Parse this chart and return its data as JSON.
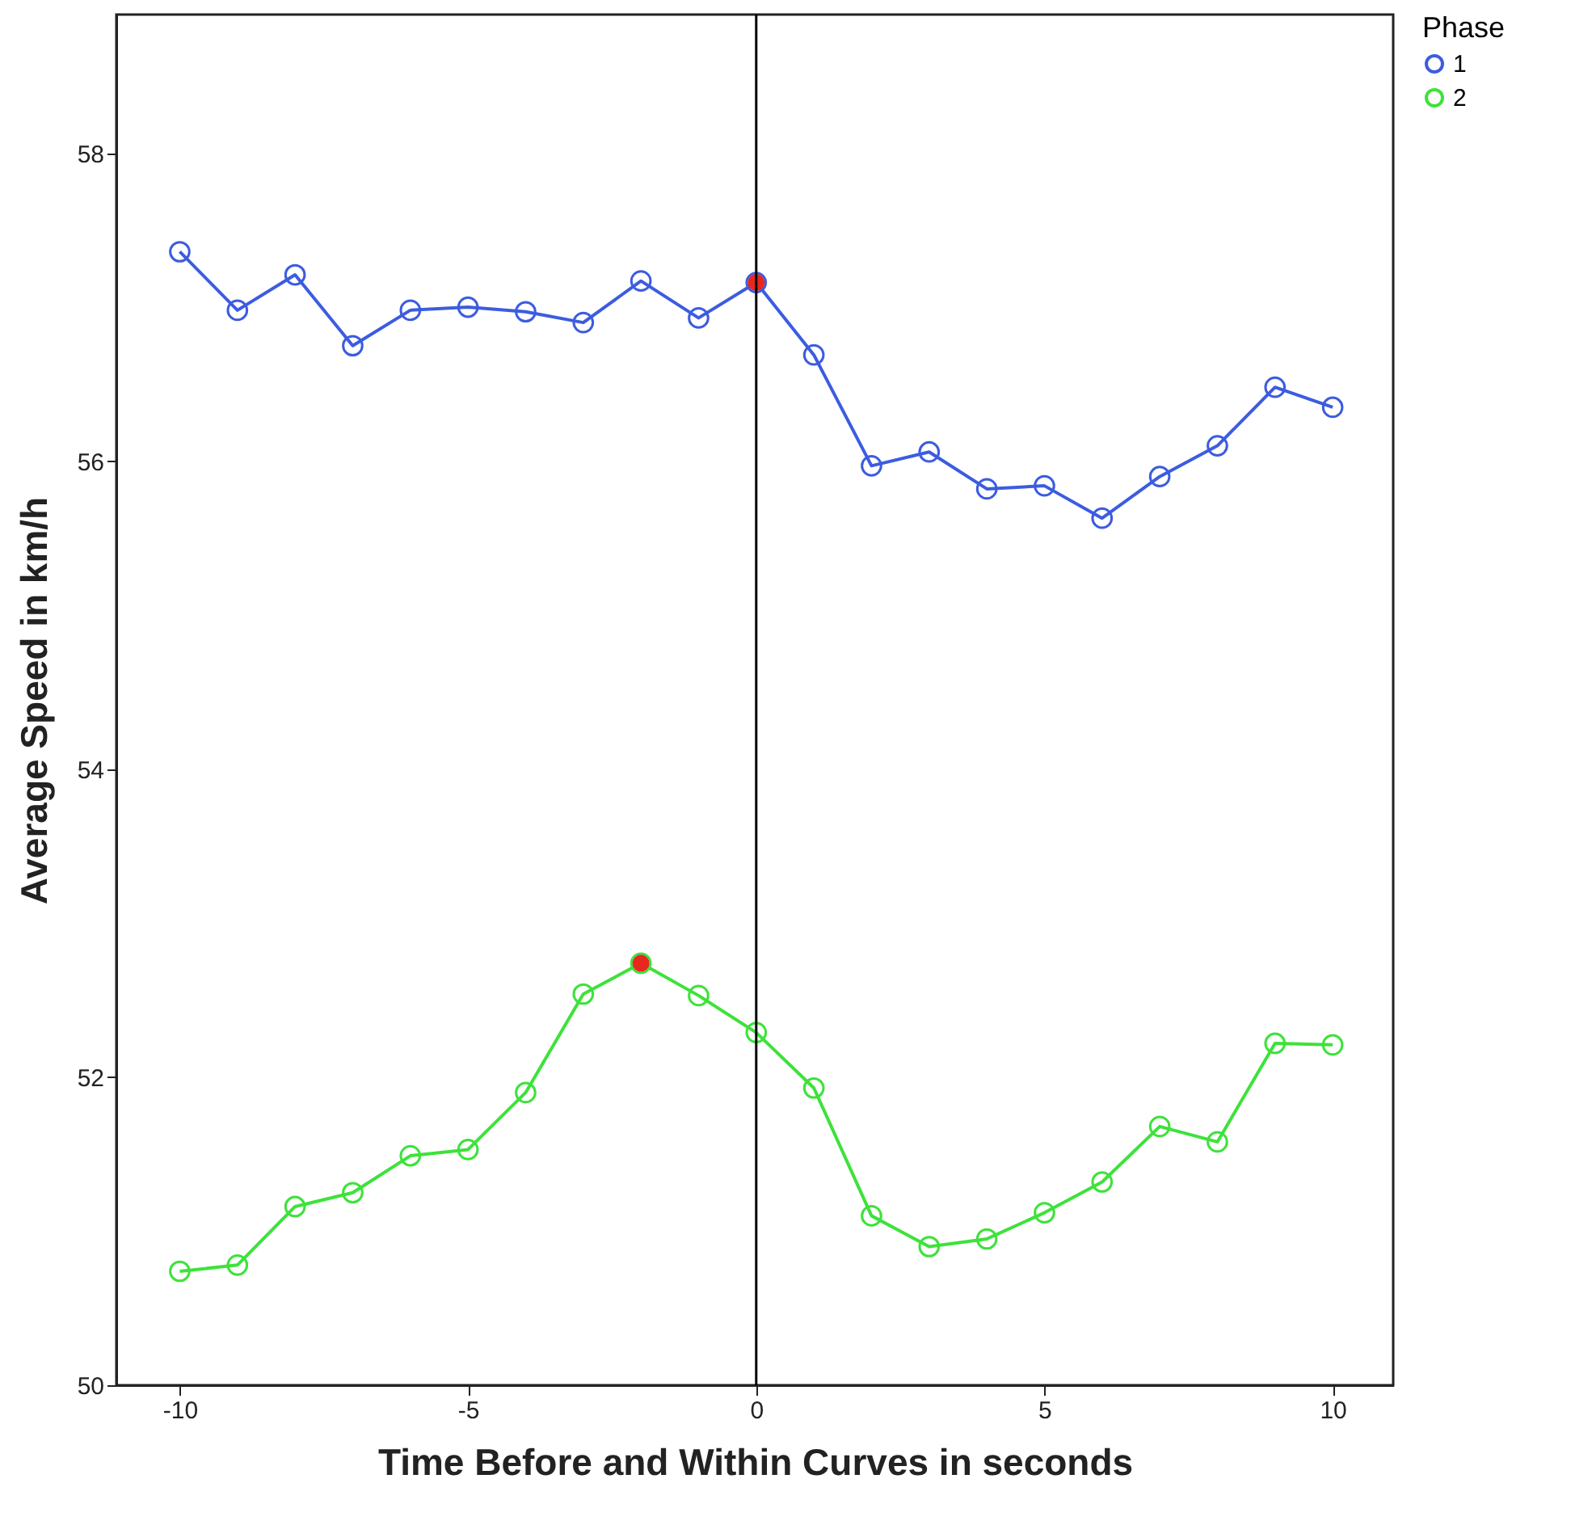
{
  "chart_data": {
    "type": "line",
    "xlabel": "Time Before and Within Curves in seconds",
    "ylabel": "Average Speed in km/h",
    "legend_title": "Phase",
    "x": [
      -10,
      -9,
      -8,
      -7,
      -6,
      -5,
      -4,
      -3,
      -2,
      -1,
      0,
      1,
      2,
      3,
      4,
      5,
      6,
      7,
      8,
      9,
      10
    ],
    "series": [
      {
        "name": "1",
        "color": "#3c5ce0",
        "values": [
          57.36,
          56.98,
          57.21,
          56.75,
          56.98,
          57.0,
          56.97,
          56.9,
          57.17,
          56.93,
          57.16,
          56.69,
          55.97,
          56.06,
          55.82,
          55.84,
          55.63,
          55.9,
          56.1,
          56.48,
          56.35
        ]
      },
      {
        "name": "2",
        "color": "#3de23a",
        "values": [
          50.74,
          50.78,
          51.16,
          51.25,
          51.49,
          51.53,
          51.9,
          52.54,
          52.74,
          52.53,
          52.29,
          51.93,
          51.1,
          50.9,
          50.95,
          51.12,
          51.32,
          51.68,
          51.58,
          52.22,
          52.21
        ]
      },
      {
        "type": "scatter",
        "color": "#e8271f",
        "x": [
          0,
          -2
        ],
        "values": [
          57.16,
          52.74
        ]
      }
    ],
    "xlim": [
      -11.1,
      11.05
    ],
    "ylim": [
      50,
      58.9
    ],
    "xticks": [
      -10,
      -5,
      0,
      5,
      10
    ],
    "yticks": [
      50,
      52,
      54,
      56,
      58
    ],
    "ref_lines": [
      {
        "axis": "x",
        "value": 0,
        "color": "#000000"
      }
    ],
    "grid": false,
    "legend": "top right",
    "marker": "circle",
    "line_style": "solid"
  }
}
